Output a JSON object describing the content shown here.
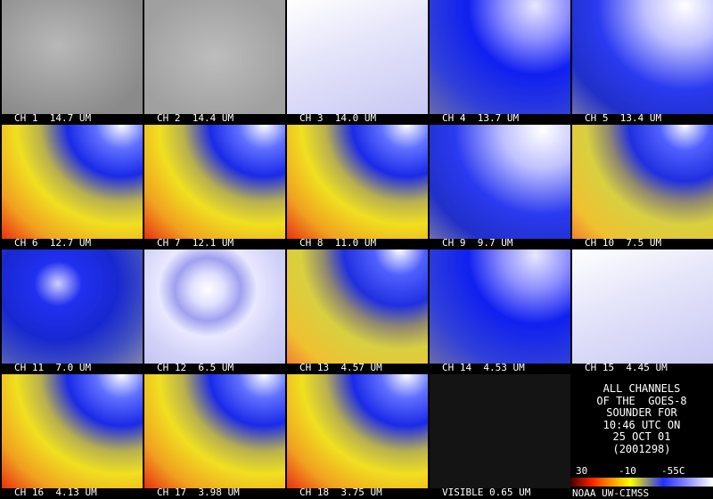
{
  "panels": [
    "CH 1  14.7 UM",
    "CH 2  14.4 UM",
    "CH 3  14.0 UM",
    "CH 4  13.7 UM",
    "CH 5  13.4 UM",
    "CH 6  12.7 UM",
    "CH 7  12.1 UM",
    "CH 8  11.0 UM",
    "CH 9  9.7 UM",
    "CH 10  7.5 UM",
    "CH 11  7.0 UM",
    "CH 12  6.5 UM",
    "CH 13  4.57 UM",
    "CH 14  4.53 UM",
    "CH 15  4.45 UM",
    "CH 16  4.13 UM",
    "CH 17  3.98 UM",
    "CH 18  3.75 UM",
    "VISIBLE 0.65 UM"
  ],
  "info": [
    "ALL CHANNELS",
    "OF THE  GOES-8",
    "SOUNDER FOR",
    "10:46 UTC ON",
    "25 OCT 01",
    "(2001298)"
  ],
  "scale": [
    "30",
    "-10",
    "-55C"
  ],
  "credit": "NOAA UW-CIMSS"
}
